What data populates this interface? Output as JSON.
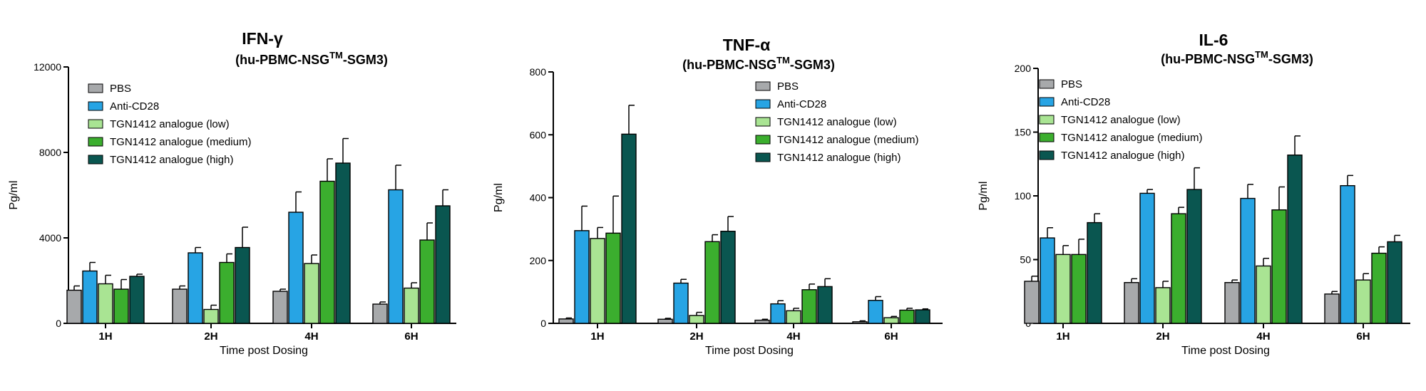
{
  "colors": {
    "PBS": "#a7a9ab",
    "Anti-CD28": "#27a4e4",
    "TGN1412 analogue (low)": "#a9e493",
    "TGN1412 analogue (medium)": "#3bae2e",
    "TGN1412 analogue (high)": "#0a5650"
  },
  "chart_data": [
    {
      "type": "bar",
      "title": "IFN-γ",
      "subtitle": "(hu-PBMC-NSG",
      "subtitle_sup": "TM",
      "subtitle_end": "-SGM3)",
      "xlabel": "Time post Dosing",
      "ylabel": "Pg/ml",
      "ylim": [
        0,
        12000
      ],
      "yticks": [
        "0",
        "4000",
        "8000",
        "12000"
      ],
      "ytick_values": [
        0,
        4000,
        8000,
        12000
      ],
      "categories": [
        "1H",
        "2H",
        "4H",
        "6H"
      ],
      "legend_position": "top-left",
      "series": [
        {
          "name": "PBS",
          "values": [
            1550,
            1600,
            1500,
            900
          ],
          "errors": [
            200,
            150,
            100,
            100
          ]
        },
        {
          "name": "Anti-CD28",
          "values": [
            2450,
            3300,
            5200,
            6250
          ],
          "errors": [
            400,
            250,
            950,
            1150
          ]
        },
        {
          "name": "TGN1412 analogue (low)",
          "values": [
            1850,
            650,
            2800,
            1650
          ],
          "errors": [
            400,
            200,
            400,
            250
          ]
        },
        {
          "name": "TGN1412 analogue (medium)",
          "values": [
            1600,
            2850,
            6650,
            3900
          ],
          "errors": [
            450,
            400,
            1050,
            800
          ]
        },
        {
          "name": "TGN1412 analogue (high)",
          "values": [
            2200,
            3550,
            7500,
            5500
          ],
          "errors": [
            100,
            950,
            1150,
            750
          ]
        }
      ]
    },
    {
      "type": "bar",
      "title": "TNF-α",
      "subtitle": "(hu-PBMC-NSG",
      "subtitle_sup": "TM",
      "subtitle_end": "-SGM3)",
      "xlabel": "Time post Dosing",
      "ylabel": "Pg/ml",
      "ylim": [
        0,
        800
      ],
      "yticks": [
        "0",
        "200",
        "400",
        "600",
        "800"
      ],
      "ytick_values": [
        0,
        200,
        400,
        600,
        800
      ],
      "categories": [
        "1H",
        "2H",
        "4H",
        "6H"
      ],
      "legend_position": "top-right",
      "series": [
        {
          "name": "PBS",
          "values": [
            14,
            13,
            10,
            5
          ],
          "errors": [
            3,
            3,
            3,
            3
          ]
        },
        {
          "name": "Anti-CD28",
          "values": [
            295,
            128,
            62,
            73
          ],
          "errors": [
            78,
            12,
            10,
            12
          ]
        },
        {
          "name": "TGN1412 analogue (low)",
          "values": [
            270,
            25,
            40,
            18
          ],
          "errors": [
            35,
            10,
            8,
            4
          ]
        },
        {
          "name": "TGN1412 analogue (medium)",
          "values": [
            287,
            260,
            107,
            42
          ],
          "errors": [
            118,
            22,
            18,
            6
          ]
        },
        {
          "name": "TGN1412 analogue (high)",
          "values": [
            602,
            293,
            117,
            43
          ],
          "errors": [
            92,
            47,
            25,
            3
          ]
        }
      ]
    },
    {
      "type": "bar",
      "title": "IL-6",
      "subtitle": "(hu-PBMC-NSG",
      "subtitle_sup": "TM",
      "subtitle_end": "-SGM3)",
      "xlabel": "Time post Dosing",
      "ylabel": "Pg/ml",
      "ylim": [
        0,
        200
      ],
      "yticks": [
        "0",
        "50",
        "100",
        "150",
        "200"
      ],
      "ytick_values": [
        0,
        50,
        100,
        150,
        200
      ],
      "categories": [
        "1H",
        "2H",
        "4H",
        "6H"
      ],
      "legend_position": "top-left",
      "series": [
        {
          "name": "PBS",
          "values": [
            33,
            32,
            32,
            23
          ],
          "errors": [
            4,
            3,
            2,
            2
          ]
        },
        {
          "name": "Anti-CD28",
          "values": [
            67,
            102,
            98,
            108
          ],
          "errors": [
            8,
            3,
            11,
            8
          ]
        },
        {
          "name": "TGN1412 analogue (low)",
          "values": [
            54,
            28,
            45,
            34
          ],
          "errors": [
            7,
            5,
            6,
            5
          ]
        },
        {
          "name": "TGN1412 analogue (medium)",
          "values": [
            54,
            86,
            89,
            55
          ],
          "errors": [
            12,
            5,
            18,
            5
          ]
        },
        {
          "name": "TGN1412 analogue (high)",
          "values": [
            79,
            105,
            132,
            64
          ],
          "errors": [
            7,
            17,
            15,
            5
          ]
        }
      ]
    }
  ]
}
